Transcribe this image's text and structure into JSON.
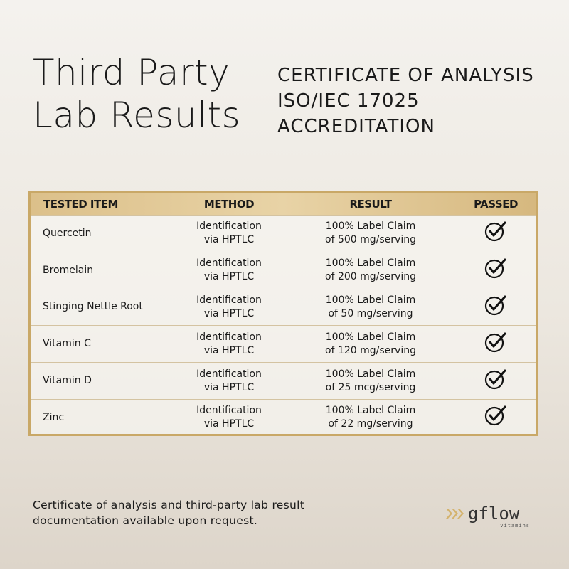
{
  "header": {
    "title": [
      "Third Party",
      "Lab Results"
    ],
    "subtitle": [
      "CERTIFICATE OF ANALYSIS",
      "ISO/IEC 17025",
      "ACCREDITATION"
    ]
  },
  "table": {
    "columns": [
      "TESTED ITEM",
      "METHOD",
      "RESULT",
      "PASSED"
    ],
    "rows": [
      {
        "item": "Quercetin",
        "method": [
          "Identification",
          "via HPTLC"
        ],
        "result": [
          "100% Label Claim",
          "of 500 mg/serving"
        ]
      },
      {
        "item": "Bromelain",
        "method": [
          "Identification",
          "via HPTLC"
        ],
        "result": [
          "100% Label Claim",
          "of 200 mg/serving"
        ]
      },
      {
        "item": "Stinging Nettle Root",
        "method": [
          "Identification",
          "via HPTLC"
        ],
        "result": [
          "100% Label Claim",
          "of 50 mg/serving"
        ]
      },
      {
        "item": "Vitamin C",
        "method": [
          "Identification",
          "via HPTLC"
        ],
        "result": [
          "100% Label Claim",
          "of 120 mg/serving"
        ]
      },
      {
        "item": "Vitamin D",
        "method": [
          "Identification",
          "via HPTLC"
        ],
        "result": [
          "100% Label Claim",
          "of 25 mcg/serving"
        ]
      },
      {
        "item": "Zinc",
        "method": [
          "Identification",
          "via HPTLC"
        ],
        "result": [
          "100% Label Claim",
          "of 22 mg/serving"
        ]
      }
    ]
  },
  "footer": {
    "note": [
      "Certificate of analysis and third-party lab result",
      "documentation available upon request."
    ],
    "logo": {
      "name": "gflow",
      "tagline": "vitamins"
    }
  }
}
